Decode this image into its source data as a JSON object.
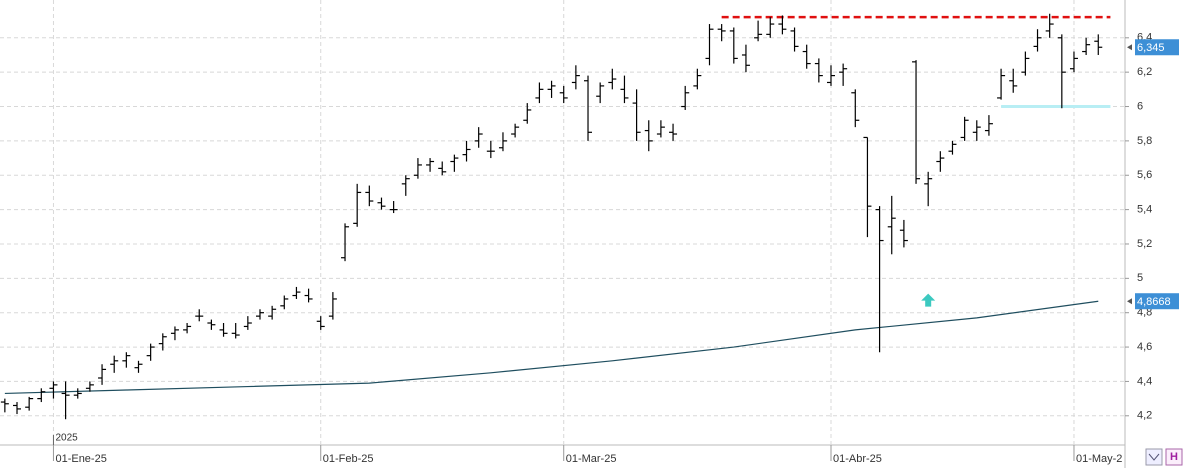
{
  "chart_data": {
    "type": "ohlc",
    "bars": [
      [
        4.28,
        4.3,
        4.22,
        4.27
      ],
      [
        4.26,
        4.28,
        4.21,
        4.24
      ],
      [
        4.25,
        4.31,
        4.23,
        4.3
      ],
      [
        4.3,
        4.36,
        4.28,
        4.34
      ],
      [
        4.36,
        4.4,
        4.3,
        4.38
      ],
      [
        4.33,
        4.4,
        4.18,
        4.32
      ],
      [
        4.32,
        4.36,
        4.3,
        4.33
      ],
      [
        4.36,
        4.4,
        4.34,
        4.38
      ],
      [
        4.42,
        4.5,
        4.38,
        4.47
      ],
      [
        4.5,
        4.55,
        4.45,
        4.52
      ],
      [
        4.52,
        4.57,
        4.48,
        4.55
      ],
      [
        4.48,
        4.52,
        4.45,
        4.5
      ],
      [
        4.55,
        4.62,
        4.52,
        4.6
      ],
      [
        4.62,
        4.68,
        4.58,
        4.66
      ],
      [
        4.68,
        4.72,
        4.64,
        4.7
      ],
      [
        4.7,
        4.74,
        4.68,
        4.72
      ],
      [
        4.78,
        4.82,
        4.75,
        4.78
      ],
      [
        4.74,
        4.76,
        4.7,
        4.73
      ],
      [
        4.7,
        4.74,
        4.66,
        4.68
      ],
      [
        4.68,
        4.74,
        4.65,
        4.67
      ],
      [
        4.72,
        4.78,
        4.7,
        4.74
      ],
      [
        4.78,
        4.82,
        4.76,
        4.8
      ],
      [
        4.78,
        4.84,
        4.76,
        4.82
      ],
      [
        4.84,
        4.9,
        4.82,
        4.88
      ],
      [
        4.9,
        4.95,
        4.88,
        4.92
      ],
      [
        4.9,
        4.94,
        4.86,
        4.88
      ],
      [
        4.75,
        4.78,
        4.7,
        4.72
      ],
      [
        4.78,
        4.92,
        4.76,
        4.88
      ],
      [
        5.12,
        5.32,
        5.1,
        5.3
      ],
      [
        5.32,
        5.55,
        5.3,
        5.5
      ],
      [
        5.5,
        5.54,
        5.42,
        5.45
      ],
      [
        5.44,
        5.47,
        5.4,
        5.42
      ],
      [
        5.4,
        5.45,
        5.38,
        5.4
      ],
      [
        5.55,
        5.6,
        5.48,
        5.58
      ],
      [
        5.6,
        5.7,
        5.58,
        5.66
      ],
      [
        5.66,
        5.7,
        5.62,
        5.68
      ],
      [
        5.64,
        5.68,
        5.6,
        5.62
      ],
      [
        5.68,
        5.72,
        5.62,
        5.7
      ],
      [
        5.72,
        5.8,
        5.68,
        5.75
      ],
      [
        5.8,
        5.88,
        5.76,
        5.84
      ],
      [
        5.74,
        5.8,
        5.7,
        5.74
      ],
      [
        5.76,
        5.85,
        5.74,
        5.8
      ],
      [
        5.84,
        5.9,
        5.82,
        5.88
      ],
      [
        5.92,
        6.02,
        5.9,
        5.98
      ],
      [
        6.05,
        6.14,
        6.02,
        6.1
      ],
      [
        6.1,
        6.15,
        6.05,
        6.12
      ],
      [
        6.08,
        6.12,
        6.02,
        6.05
      ],
      [
        6.14,
        6.24,
        6.1,
        6.18
      ],
      [
        6.15,
        6.18,
        5.8,
        5.85
      ],
      [
        6.06,
        6.14,
        6.02,
        6.12
      ],
      [
        6.14,
        6.22,
        6.1,
        6.16
      ],
      [
        6.1,
        6.18,
        6.02,
        6.05
      ],
      [
        6.02,
        6.1,
        5.8,
        5.85
      ],
      [
        5.86,
        5.92,
        5.74,
        5.8
      ],
      [
        5.84,
        5.92,
        5.82,
        5.88
      ],
      [
        5.85,
        5.9,
        5.8,
        5.84
      ],
      [
        6.0,
        6.12,
        5.98,
        6.08
      ],
      [
        6.12,
        6.22,
        6.1,
        6.18
      ],
      [
        6.28,
        6.48,
        6.24,
        6.45
      ],
      [
        6.45,
        6.48,
        6.38,
        6.44
      ],
      [
        6.44,
        6.46,
        6.25,
        6.28
      ],
      [
        6.3,
        6.36,
        6.2,
        6.24
      ],
      [
        6.4,
        6.5,
        6.38,
        6.42
      ],
      [
        6.42,
        6.52,
        6.4,
        6.48
      ],
      [
        6.48,
        6.53,
        6.42,
        6.45
      ],
      [
        6.44,
        6.46,
        6.32,
        6.35
      ],
      [
        6.32,
        6.36,
        6.22,
        6.25
      ],
      [
        6.25,
        6.28,
        6.14,
        6.18
      ],
      [
        6.14,
        6.24,
        6.12,
        6.18
      ],
      [
        6.2,
        6.25,
        6.12,
        6.22
      ],
      [
        6.08,
        6.1,
        5.88,
        5.92
      ],
      [
        5.82,
        5.82,
        5.24,
        5.42
      ],
      [
        5.4,
        5.42,
        4.57,
        5.22
      ],
      [
        5.3,
        5.48,
        5.14,
        5.35
      ],
      [
        5.28,
        5.34,
        5.18,
        5.22
      ],
      [
        6.26,
        6.27,
        5.55,
        5.58
      ],
      [
        5.55,
        5.62,
        5.42,
        5.58
      ],
      [
        5.68,
        5.74,
        5.62,
        5.7
      ],
      [
        5.74,
        5.8,
        5.72,
        5.78
      ],
      [
        5.82,
        5.94,
        5.8,
        5.92
      ],
      [
        5.85,
        5.92,
        5.8,
        5.88
      ],
      [
        5.86,
        5.95,
        5.83,
        5.9
      ],
      [
        6.05,
        6.22,
        6.04,
        6.18
      ],
      [
        6.15,
        6.22,
        6.08,
        6.12
      ],
      [
        6.2,
        6.32,
        6.18,
        6.28
      ],
      [
        6.35,
        6.45,
        6.32,
        6.4
      ],
      [
        6.44,
        6.54,
        6.4,
        6.48
      ],
      [
        6.4,
        6.42,
        5.99,
        6.2
      ],
      [
        6.22,
        6.32,
        6.2,
        6.28
      ],
      [
        6.32,
        6.4,
        6.3,
        6.36
      ],
      [
        6.38,
        6.42,
        6.3,
        6.345
      ]
    ],
    "bar_color": "#000000",
    "moving_average": {
      "color": "#1f4e5f",
      "x": [
        0,
        10,
        20,
        30,
        40,
        50,
        60,
        70,
        80,
        90
      ],
      "values": [
        4.33,
        4.35,
        4.37,
        4.39,
        4.45,
        4.52,
        4.6,
        4.7,
        4.77,
        4.8668
      ]
    },
    "xlim": [
      -0.4,
      92.2
    ],
    "xticks": [
      {
        "value": 4,
        "label": "01-Ene-25"
      },
      {
        "value": 26,
        "label": "01-Feb-25"
      },
      {
        "value": 46,
        "label": "01-Mar-25"
      },
      {
        "value": 68,
        "label": "01-Abr-25"
      },
      {
        "value": 88,
        "label": "01-May-2"
      }
    ],
    "year_label": {
      "value": 4,
      "label": "2025"
    },
    "ylim": [
      4.03,
      6.62
    ],
    "yticks": [
      {
        "value": 4.2,
        "label": "4,2"
      },
      {
        "value": 4.4,
        "label": "4,4"
      },
      {
        "value": 4.6,
        "label": "4,6"
      },
      {
        "value": 4.8,
        "label": "4,8"
      },
      5,
      {
        "value": 5.2,
        "label": "5,2"
      },
      {
        "value": 5.4,
        "label": "5,4"
      },
      {
        "value": 5.6,
        "label": "5,6"
      },
      {
        "value": 5.8,
        "label": "5,8"
      },
      6,
      {
        "value": 6.2,
        "label": "6,2"
      },
      {
        "value": 6.4,
        "label": "6,4"
      }
    ],
    "grid": true,
    "last_price": {
      "value": 6.345,
      "label": "6,345",
      "color": "#3d8fd6"
    },
    "ma_last": {
      "value": 4.8668,
      "label": "4,8668",
      "color": "#3d8fd6"
    },
    "resistance": {
      "value": 6.52,
      "x": [
        59,
        91
      ],
      "color": "#e01010"
    },
    "support": {
      "value": 6.0,
      "x": [
        82,
        91
      ],
      "color": "#b8eef4"
    },
    "arrow": {
      "x": 76,
      "value": 4.87,
      "color": "#3cc9c0"
    }
  }
}
